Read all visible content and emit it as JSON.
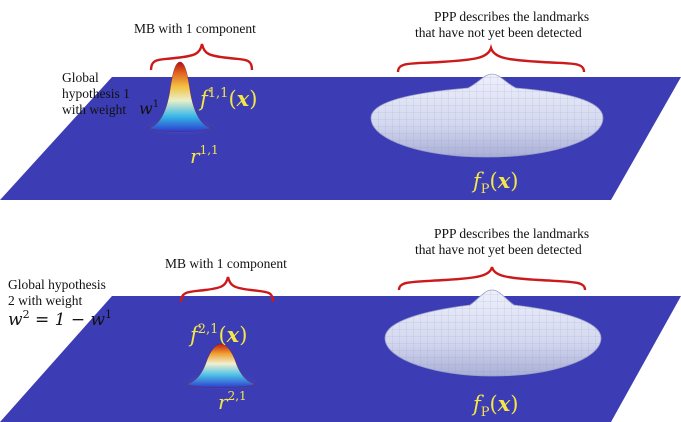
{
  "panels": [
    {
      "mb_label": "MB with 1 component",
      "ppp_label_line1": "PPP describes the landmarks",
      "ppp_label_line2": "that have not yet been detected",
      "hyp_line1": "Global",
      "hyp_line2": "hypothesis 1",
      "hyp_line3": "with weight",
      "weight_symbol": "w",
      "weight_sup": "1",
      "weight_rest": "",
      "density_f": "f",
      "density_sup": "1,1",
      "density_arg": "x",
      "existence_r": "r",
      "existence_sup": "1,1",
      "ppp_f": "f",
      "ppp_sub": "P",
      "ppp_arg": "x"
    },
    {
      "mb_label": "MB with 1 component",
      "ppp_label_line1": "PPP describes the landmarks",
      "ppp_label_line2": "that have not yet been detected",
      "hyp_line1": "Global hypothesis",
      "hyp_line2": "2 with weight",
      "hyp_line3": "",
      "weight_symbol": "w",
      "weight_sup": "2",
      "weight_rest": " = 1 − w",
      "weight_rest_sup": "1",
      "density_f": "f",
      "density_sup": "2,1",
      "density_arg": "x",
      "existence_r": "r",
      "existence_sup": "2,1",
      "ppp_f": "f",
      "ppp_sub": "P",
      "ppp_arg": "x"
    }
  ],
  "colors": {
    "plane": "#3c3cb4",
    "brace": "#cc1a1a",
    "math": "#f2e64a",
    "ppp_surface": "#dcdff2",
    "ppp_edge": "#9aa0c8"
  }
}
